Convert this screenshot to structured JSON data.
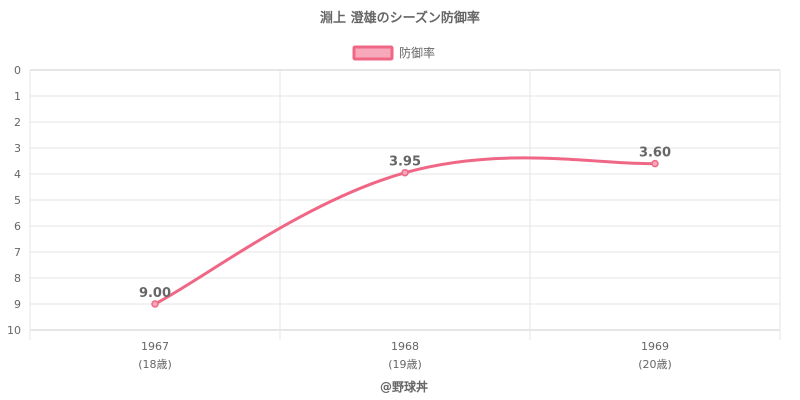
{
  "title": "淵上 澄雄のシーズン防御率",
  "legend": {
    "label": "防御率"
  },
  "credit": "@野球丼",
  "colors": {
    "line": "#f06786",
    "legend_fill": "#f7a8bb",
    "grid": "#e6e6e6",
    "axis": "#cccccc",
    "text": "#666666"
  },
  "chart_data": {
    "type": "line",
    "title": "淵上 澄雄のシーズン防御率",
    "series": [
      {
        "name": "防御率",
        "values": [
          9.0,
          3.95,
          3.6
        ]
      }
    ],
    "categories": [
      "1967",
      "1968",
      "1969"
    ],
    "category_sublabels": [
      "(18歳)",
      "(19歳)",
      "(20歳)"
    ],
    "data_labels": [
      "9.00",
      "3.95",
      "3.60"
    ],
    "ylim": [
      0,
      10
    ],
    "y_reversed": true,
    "y_ticks": [
      "0",
      "1",
      "2",
      "3",
      "4",
      "5",
      "6",
      "7",
      "8",
      "9",
      "10"
    ],
    "grid": true,
    "legend_position": "top",
    "curve": "smooth"
  }
}
